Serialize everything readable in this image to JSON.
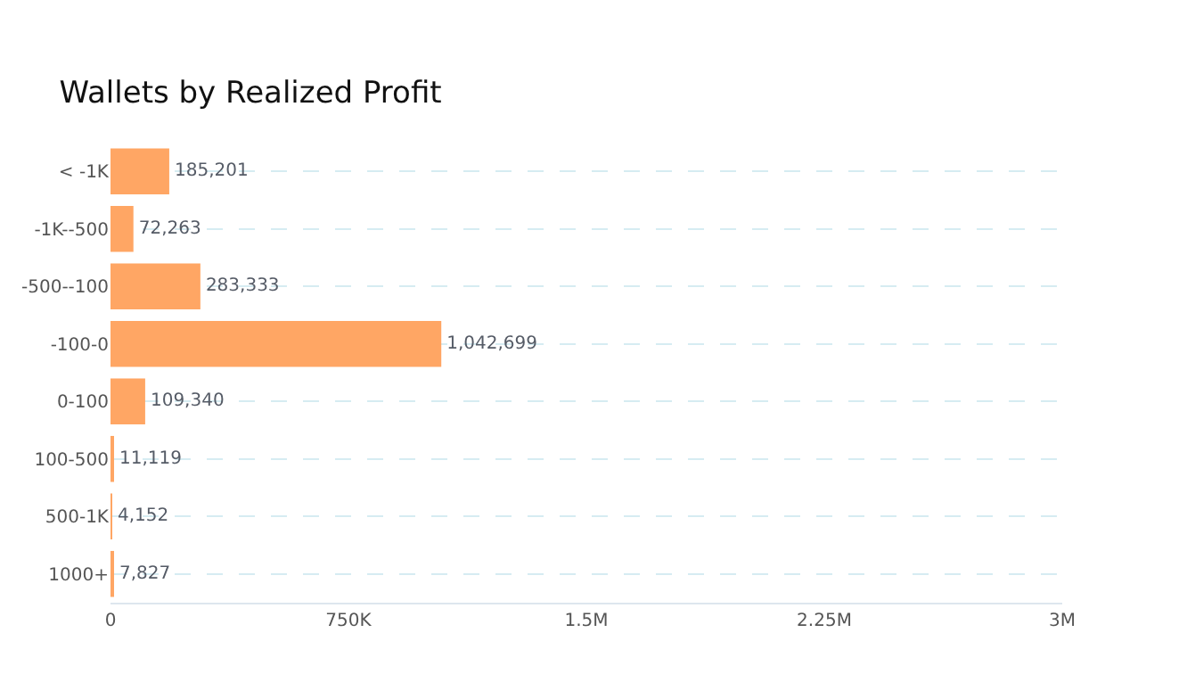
{
  "chart_data": {
    "type": "bar",
    "orientation": "horizontal",
    "title": "Wallets by Realized Profit",
    "categories": [
      "< -1K",
      "-1K--500",
      "-500--100",
      "-100-0",
      "0-100",
      "100-500",
      "500-1K",
      "1000+"
    ],
    "values": [
      185201,
      72263,
      283333,
      1042699,
      109340,
      11119,
      4152,
      7827
    ],
    "value_labels": [
      "185,201",
      "72,263",
      "283,333",
      "1,042,699",
      "109,340",
      "11,119",
      "4,152",
      "7,827"
    ],
    "color": "#ffa664",
    "xlim": [
      0,
      3000000
    ],
    "xticks": [
      0,
      {
        "value": 750000,
        "label": "750K"
      },
      {
        "value": 1500000,
        "label": "1.5M"
      },
      {
        "value": 2250000,
        "label": "2.25M"
      },
      {
        "value": 3000000,
        "label": "3M"
      }
    ],
    "grid": "y"
  }
}
